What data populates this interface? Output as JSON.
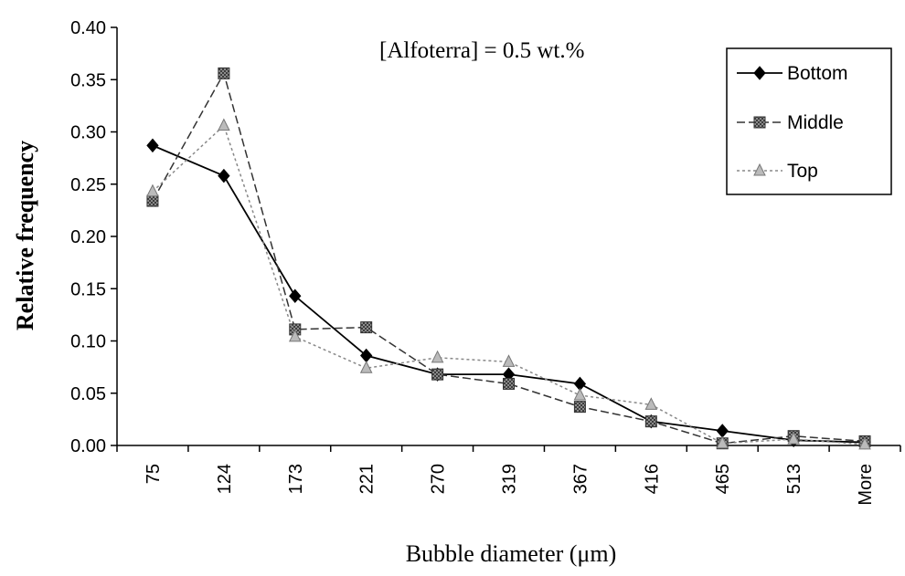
{
  "chart_data": {
    "type": "line",
    "title": "",
    "annotation": "[Alfoterra] = 0.5 wt.%",
    "xlabel": "Bubble diameter (μm)",
    "ylabel": "Relative  frequency",
    "categories": [
      "75",
      "124",
      "173",
      "221",
      "270",
      "319",
      "367",
      "416",
      "465",
      "513",
      "More"
    ],
    "ylim": [
      0,
      0.4
    ],
    "yticks": [
      "0.00",
      "0.05",
      "0.10",
      "0.15",
      "0.20",
      "0.25",
      "0.30",
      "0.35",
      "0.40"
    ],
    "grid": false,
    "legend_position": "top-right",
    "series": [
      {
        "name": "Bottom",
        "marker": "diamond",
        "dash": "solid",
        "color": "#000000",
        "values": [
          0.287,
          0.258,
          0.143,
          0.086,
          0.068,
          0.068,
          0.059,
          0.023,
          0.014,
          0.005,
          0.003
        ]
      },
      {
        "name": "Middle",
        "marker": "square-hatched",
        "dash": "dashed",
        "color": "#333333",
        "values": [
          0.234,
          0.356,
          0.111,
          0.113,
          0.068,
          0.059,
          0.037,
          0.023,
          0.002,
          0.009,
          0.004
        ]
      },
      {
        "name": "Top",
        "marker": "triangle",
        "dash": "dotted",
        "color": "#888888",
        "values": [
          0.243,
          0.306,
          0.104,
          0.074,
          0.084,
          0.08,
          0.048,
          0.039,
          0.002,
          0.006,
          0.001
        ]
      }
    ]
  }
}
